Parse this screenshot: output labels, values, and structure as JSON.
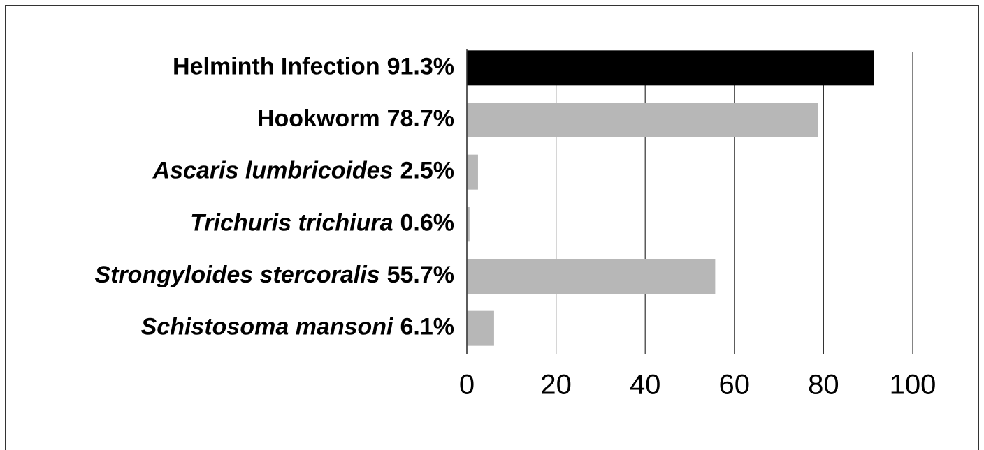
{
  "chart_data": {
    "type": "barh",
    "categories": [
      "Helminth Infection",
      "Hookworm",
      "Ascaris lumbricoides",
      "Trichuris trichiura",
      "Strongyloides stercoralis",
      "Schistosoma mansoni"
    ],
    "italic": [
      false,
      false,
      true,
      true,
      true,
      true
    ],
    "values": [
      91.3,
      78.7,
      2.5,
      0.6,
      55.7,
      6.1
    ],
    "value_labels": [
      "91.3%",
      "78.7%",
      "2.5%",
      "0.6%",
      "55.7%",
      "6.1%"
    ],
    "colors": [
      "#000000",
      "#b7b7b7",
      "#b7b7b7",
      "#b7b7b7",
      "#b7b7b7",
      "#b7b7b7"
    ],
    "xlim": [
      0,
      100
    ],
    "xticks": [
      0,
      20,
      40,
      60,
      80,
      100
    ],
    "grid": true
  }
}
